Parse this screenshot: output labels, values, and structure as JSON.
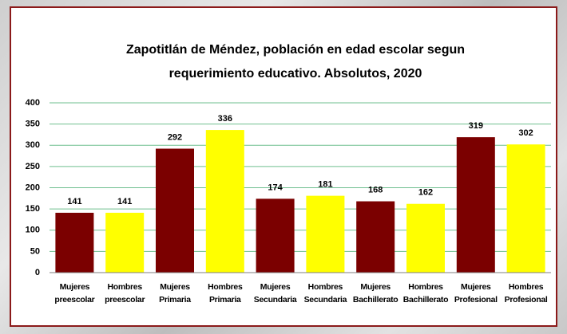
{
  "chart_data": {
    "type": "bar",
    "title": "Zapotitlán de Méndez, población en edad escolar segun requerimiento educativo. Absolutos, 2020",
    "categories": [
      "Mujeres preescolar",
      "Hombres preescolar",
      "Mujeres Primaria",
      "Hombres Primaria",
      "Mujeres Secundaria",
      "Hombres Secundaria",
      "Mujeres Bachillerato",
      "Hombres Bachillerato",
      "Mujeres Profesional",
      "Hombres Profesional"
    ],
    "values": [
      141,
      141,
      292,
      336,
      174,
      181,
      168,
      162,
      319,
      302
    ],
    "colors": [
      "#7b0000",
      "#ffff00",
      "#7b0000",
      "#ffff00",
      "#7b0000",
      "#ffff00",
      "#7b0000",
      "#ffff00",
      "#7b0000",
      "#ffff00"
    ],
    "ylim": [
      0,
      400
    ],
    "yticks": [
      0,
      50,
      100,
      150,
      200,
      250,
      300,
      350,
      400
    ],
    "grid": true
  }
}
